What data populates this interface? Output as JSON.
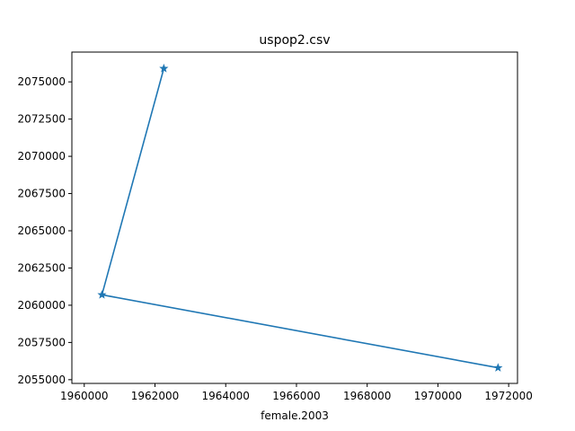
{
  "chart_data": {
    "type": "line",
    "title": "uspop2.csv",
    "xlabel": "female.2003",
    "ylabel": "",
    "xlim": [
      1959650,
      1972250
    ],
    "ylim": [
      2054750,
      2077000
    ],
    "x_ticks": [
      1960000,
      1962000,
      1964000,
      1966000,
      1968000,
      1970000,
      1972000
    ],
    "x_tick_labels": [
      "1960000",
      "1962000",
      "1964000",
      "1966000",
      "1968000",
      "1970000",
      "1972000"
    ],
    "y_ticks": [
      2055000,
      2057500,
      2060000,
      2062500,
      2065000,
      2067500,
      2070000,
      2072500,
      2075000
    ],
    "y_tick_labels": [
      "2055000",
      "2057500",
      "2060000",
      "2062500",
      "2065000",
      "2067500",
      "2070000",
      "2072500",
      "2075000"
    ],
    "grid": false,
    "marker": "star",
    "color": "#1f77b4",
    "series": [
      {
        "x": [
          1962250,
          1960500,
          1971700
        ],
        "y": [
          2075900,
          2060700,
          2055800
        ]
      }
    ]
  }
}
